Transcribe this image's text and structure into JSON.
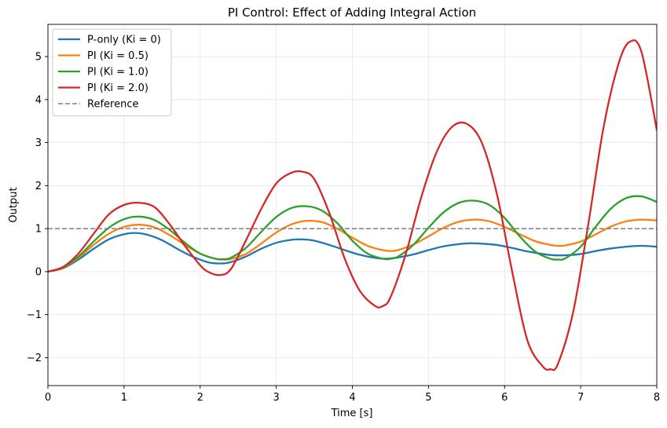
{
  "chart_data": {
    "type": "line",
    "title": "PI Control: Effect of Adding Integral Action",
    "xlabel": "Time [s]",
    "ylabel": "Output",
    "xlim": [
      0,
      8
    ],
    "ylim": [
      -2.65,
      5.75
    ],
    "xticks": [
      0,
      1,
      2,
      3,
      4,
      5,
      6,
      7,
      8
    ],
    "xtick_labels": [
      "0",
      "1",
      "2",
      "3",
      "4",
      "5",
      "6",
      "7",
      "8"
    ],
    "yticks": [
      -2,
      -1,
      0,
      1,
      2,
      3,
      4,
      5
    ],
    "ytick_labels": [
      "−2",
      "−1",
      "0",
      "1",
      "2",
      "3",
      "4",
      "5"
    ],
    "grid": true,
    "legend_position": "top-left",
    "series": [
      {
        "name": "P-only (Ki = 0)",
        "color": "#1f77b4",
        "x": [
          0,
          0.2,
          0.4,
          0.6,
          0.8,
          1.0,
          1.15,
          1.3,
          1.5,
          1.7,
          1.9,
          2.1,
          2.25,
          2.4,
          2.6,
          2.8,
          3.0,
          3.2,
          3.35,
          3.5,
          3.7,
          3.9,
          4.1,
          4.3,
          4.45,
          4.6,
          4.8,
          5.0,
          5.2,
          5.4,
          5.55,
          5.7,
          5.9,
          6.1,
          6.3,
          6.5,
          6.65,
          6.8,
          7.0,
          7.2,
          7.4,
          7.6,
          7.8,
          8.0
        ],
        "y": [
          0,
          0.08,
          0.28,
          0.53,
          0.75,
          0.87,
          0.9,
          0.86,
          0.73,
          0.53,
          0.35,
          0.22,
          0.19,
          0.22,
          0.35,
          0.53,
          0.67,
          0.74,
          0.75,
          0.72,
          0.62,
          0.5,
          0.39,
          0.32,
          0.3,
          0.33,
          0.4,
          0.5,
          0.59,
          0.64,
          0.66,
          0.65,
          0.62,
          0.55,
          0.47,
          0.41,
          0.38,
          0.38,
          0.41,
          0.48,
          0.54,
          0.58,
          0.6,
          0.58
        ]
      },
      {
        "name": "PI (Ki = 0.5)",
        "color": "#ff7f0e",
        "x": [
          0,
          0.2,
          0.4,
          0.6,
          0.8,
          1.0,
          1.2,
          1.4,
          1.6,
          1.8,
          2.0,
          2.2,
          2.3,
          2.4,
          2.6,
          2.8,
          3.0,
          3.2,
          3.4,
          3.6,
          3.8,
          4.0,
          4.2,
          4.4,
          4.5,
          4.6,
          4.8,
          5.0,
          5.2,
          5.4,
          5.6,
          5.8,
          6.0,
          6.2,
          6.4,
          6.6,
          6.7,
          6.8,
          7.0,
          7.2,
          7.4,
          7.6,
          7.8,
          8.0
        ],
        "y": [
          0,
          0.09,
          0.32,
          0.62,
          0.88,
          1.04,
          1.09,
          1.03,
          0.85,
          0.62,
          0.42,
          0.3,
          0.28,
          0.29,
          0.41,
          0.65,
          0.91,
          1.1,
          1.18,
          1.15,
          1.0,
          0.79,
          0.6,
          0.5,
          0.48,
          0.5,
          0.63,
          0.82,
          1.02,
          1.16,
          1.21,
          1.17,
          1.04,
          0.87,
          0.71,
          0.62,
          0.6,
          0.61,
          0.7,
          0.87,
          1.05,
          1.17,
          1.21,
          1.19
        ]
      },
      {
        "name": "PI (Ki = 1.0)",
        "color": "#2ca02c",
        "x": [
          0,
          0.2,
          0.4,
          0.6,
          0.8,
          1.0,
          1.2,
          1.4,
          1.6,
          1.8,
          2.0,
          2.2,
          2.3,
          2.4,
          2.6,
          2.8,
          3.0,
          3.2,
          3.4,
          3.6,
          3.8,
          4.0,
          4.2,
          4.4,
          4.5,
          4.6,
          4.8,
          5.0,
          5.2,
          5.4,
          5.6,
          5.8,
          6.0,
          6.2,
          6.4,
          6.6,
          6.7,
          6.8,
          7.0,
          7.2,
          7.4,
          7.6,
          7.8,
          8.0
        ],
        "y": [
          0,
          0.1,
          0.35,
          0.7,
          1.02,
          1.22,
          1.28,
          1.2,
          0.97,
          0.67,
          0.42,
          0.3,
          0.29,
          0.32,
          0.55,
          0.92,
          1.27,
          1.48,
          1.52,
          1.42,
          1.13,
          0.72,
          0.42,
          0.3,
          0.3,
          0.35,
          0.62,
          1.02,
          1.38,
          1.6,
          1.65,
          1.55,
          1.25,
          0.82,
          0.47,
          0.3,
          0.28,
          0.31,
          0.58,
          1.05,
          1.47,
          1.71,
          1.75,
          1.62
        ]
      },
      {
        "name": "PI (Ki = 2.0)",
        "color": "#d62728",
        "x": [
          0,
          0.2,
          0.4,
          0.6,
          0.8,
          1.0,
          1.2,
          1.4,
          1.6,
          1.8,
          2.0,
          2.1,
          2.25,
          2.4,
          2.6,
          2.8,
          3.0,
          3.2,
          3.35,
          3.5,
          3.7,
          3.9,
          4.1,
          4.3,
          4.4,
          4.5,
          4.7,
          4.9,
          5.1,
          5.3,
          5.5,
          5.7,
          5.9,
          6.1,
          6.3,
          6.5,
          6.6,
          6.7,
          6.9,
          7.1,
          7.3,
          7.5,
          7.65,
          7.8,
          8.0
        ],
        "y": [
          0,
          0.11,
          0.42,
          0.88,
          1.33,
          1.55,
          1.6,
          1.5,
          1.1,
          0.6,
          0.15,
          0.0,
          -0.08,
          0.05,
          0.72,
          1.45,
          2.05,
          2.3,
          2.32,
          2.15,
          1.35,
          0.3,
          -0.45,
          -0.8,
          -0.8,
          -0.6,
          0.4,
          1.7,
          2.75,
          3.35,
          3.44,
          3.0,
          1.8,
          0.0,
          -1.6,
          -2.2,
          -2.27,
          -2.15,
          -0.95,
          1.1,
          3.35,
          4.85,
          5.35,
          5.1,
          3.3
        ]
      },
      {
        "name": "Reference",
        "color": "#7f7f7f",
        "dashed": true,
        "x": [
          0,
          8
        ],
        "y": [
          1,
          1
        ]
      }
    ]
  }
}
